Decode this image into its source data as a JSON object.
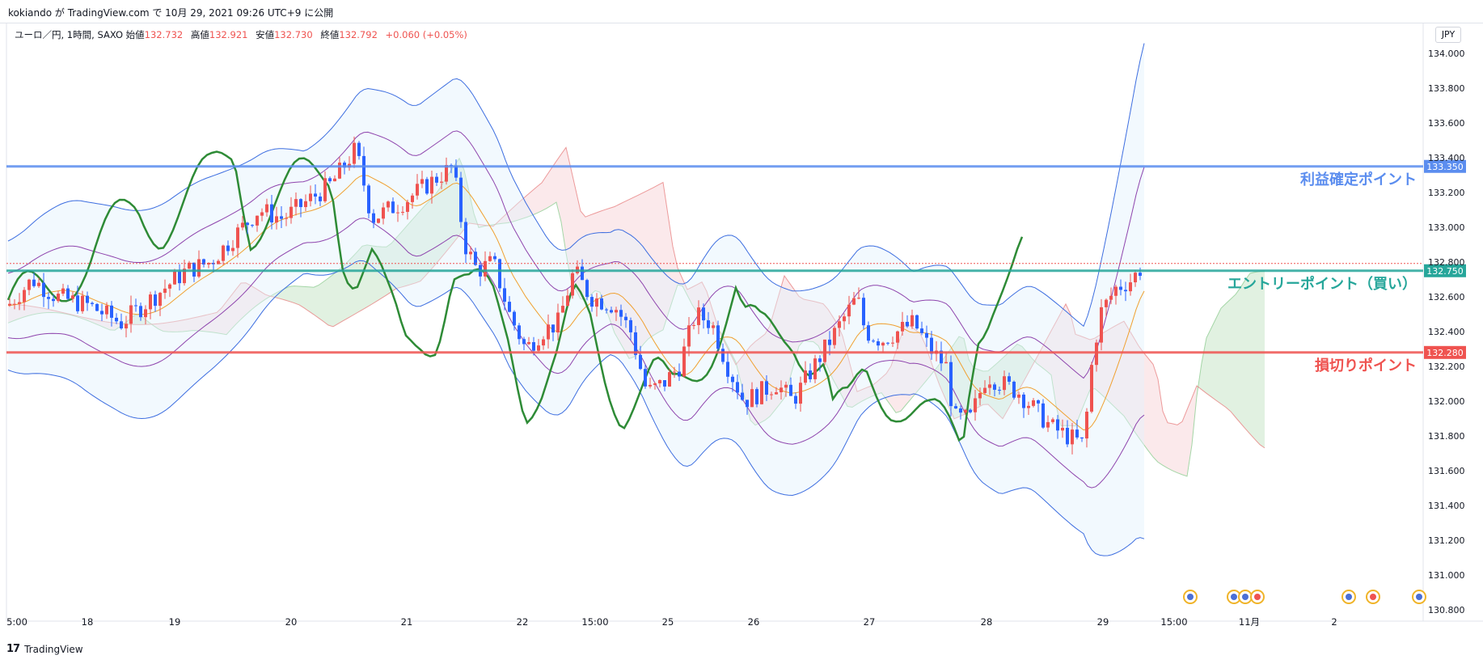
{
  "byline": "kokiando が TradingView.com で 10月 29, 2021 09:26 UTC+9 に公開",
  "legend": {
    "symbol": "ユーロ／円, 1時間, SAXO",
    "open_label": "始値",
    "open": "132.732",
    "high_label": "高値",
    "high": "132.921",
    "low_label": "安値",
    "low": "132.730",
    "close_label": "終値",
    "close": "132.792",
    "change": "+0.060 (+0.05%)"
  },
  "currency": "JPY",
  "footer": {
    "logo": "17",
    "brand": "TradingView"
  },
  "chart_data": {
    "type": "candlestick",
    "y_ticks": [
      "134.000",
      "133.800",
      "133.600",
      "133.400",
      "133.200",
      "133.000",
      "132.800",
      "132.600",
      "132.400",
      "132.200",
      "132.000",
      "131.800",
      "131.600",
      "131.400",
      "131.200",
      "131.000",
      "130.800"
    ],
    "ylim": [
      130.8,
      134.0
    ],
    "x_ticks": [
      "5:00",
      "18",
      "19",
      "20",
      "21",
      "22",
      "15:00",
      "25",
      "26",
      "27",
      "28",
      "29",
      "15:00",
      "11月",
      "2"
    ],
    "horizontal_lines": [
      {
        "label": "利益確定ポイント",
        "value": 133.35,
        "price_label": "133.350",
        "color": "#5b8def"
      },
      {
        "label": "エントリーポイント（買い）",
        "value": 132.75,
        "price_label": "132.750",
        "color": "#26a69a"
      },
      {
        "label": "損切りポイント",
        "value": 132.28,
        "price_label": "132.280",
        "color": "#ef5350"
      }
    ],
    "last_price": 132.792,
    "colors": {
      "up": "#ef5350",
      "down": "#2962ff",
      "bb": "#3d6ee0",
      "tenkan": "#f0a030",
      "kijun": "#8e44ad",
      "chikou": "#2e8b36",
      "cloud_up": "#c8e6c9",
      "cloud_down": "#f8d7da"
    }
  }
}
